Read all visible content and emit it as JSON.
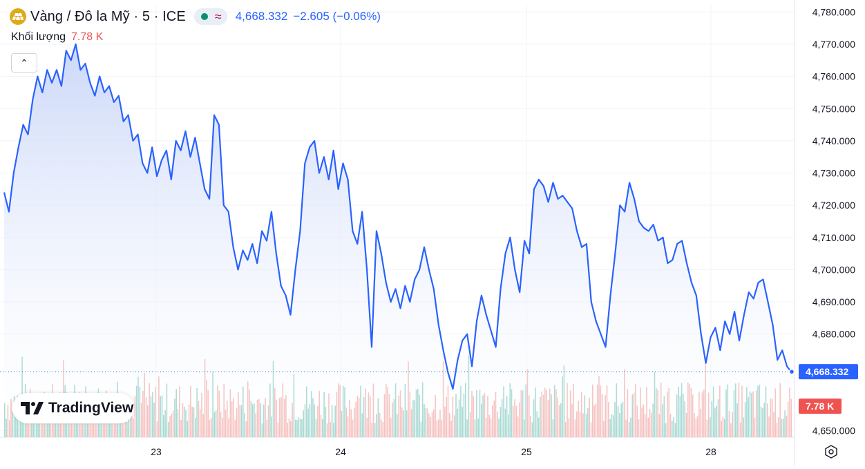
{
  "header": {
    "title": "Vàng / Đô la Mỹ · 5 · ICE",
    "price": "4,668.332",
    "change": "−2.605 (−0.06%)",
    "approx_symbol": "≈",
    "volume_label": "Khối lượng",
    "volume_value": "7.78 K",
    "collapse_symbol": "⌃"
  },
  "logo": {
    "text": "TradingView"
  },
  "price_tag": "4,668.332",
  "volume_tag": "7.78 K",
  "colors": {
    "line": "#2962ff",
    "area_top": "#c9d6f8",
    "vol_up": "#7fc8bd",
    "vol_down": "#f2a3a0",
    "price_tag_bg": "#2962ff",
    "volume_tag_bg": "#ef5350"
  },
  "chart_data": {
    "type": "area",
    "interval": "5",
    "x_ticks": [
      "23",
      "24",
      "25",
      "28"
    ],
    "y_ticks": [
      "4,780.000",
      "4,770.000",
      "4,760.000",
      "4,750.000",
      "4,740.000",
      "4,730.000",
      "4,720.000",
      "4,710.000",
      "4,700.000",
      "4,690.000",
      "4,680.000",
      "4,650.000"
    ],
    "ylim": [
      4648,
      4782
    ],
    "last_price": 4668.332,
    "series": [
      {
        "values": [
          4724,
          4718,
          4730,
          4738,
          4745,
          4742,
          4753,
          4760,
          4755,
          4762,
          4758,
          4762,
          4757,
          4768,
          4765,
          4770,
          4762,
          4764,
          4758,
          4754,
          4760,
          4755,
          4757,
          4752,
          4754,
          4746,
          4748,
          4740,
          4742,
          4733,
          4730,
          4738,
          4729,
          4734,
          4737,
          4728,
          4740,
          4737,
          4743,
          4735,
          4741,
          4733,
          4725,
          4722,
          4748,
          4745,
          4720,
          4718,
          4707,
          4700,
          4706,
          4703,
          4708,
          4702,
          4712,
          4709,
          4718,
          4705,
          4695,
          4692,
          4686,
          4700,
          4712,
          4733,
          4738,
          4740,
          4730,
          4735,
          4728,
          4737,
          4725,
          4733,
          4728,
          4712,
          4708,
          4718,
          4700,
          4676,
          4712,
          4705,
          4696,
          4690,
          4694,
          4688,
          4695,
          4690,
          4697,
          4700,
          4707,
          4700,
          4694,
          4683,
          4675,
          4668,
          4663,
          4672,
          4678,
          4680,
          4670,
          4684,
          4692,
          4686,
          4681,
          4676,
          4694,
          4705,
          4710,
          4700,
          4693,
          4709,
          4705,
          4725,
          4728,
          4726,
          4721,
          4727,
          4722,
          4723,
          4721,
          4719,
          4712,
          4707,
          4708,
          4690,
          4684,
          4680,
          4676,
          4692,
          4705,
          4720,
          4718,
          4727,
          4722,
          4715,
          4713,
          4712,
          4714,
          4709,
          4710,
          4702,
          4703,
          4708,
          4709,
          4702,
          4696,
          4692,
          4680,
          4671,
          4679,
          4682,
          4675,
          4684,
          4680,
          4687,
          4678,
          4686,
          4693,
          4691,
          4696,
          4697,
          4690,
          4683,
          4672,
          4675,
          4670,
          4668
        ]
      }
    ],
    "volume": {
      "label": "Khối lượng",
      "last": "7.78 K"
    }
  }
}
